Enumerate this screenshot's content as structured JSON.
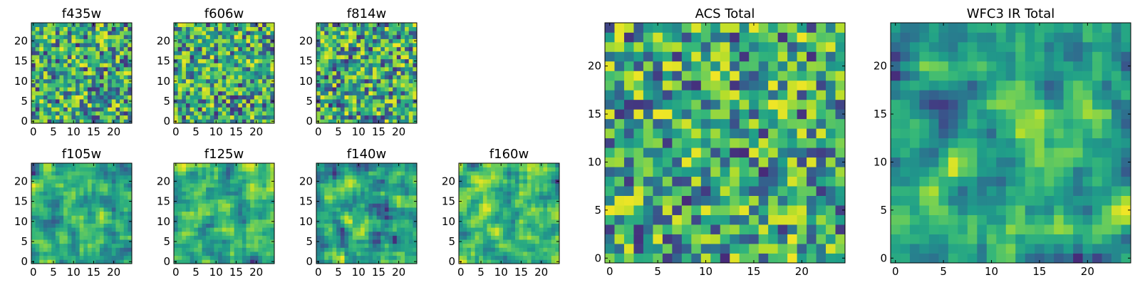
{
  "chart_data": [
    {
      "type": "heatmap",
      "title": "f435w",
      "grid_size": 25,
      "colormap": "viridis",
      "x_ticks": [
        0,
        5,
        10,
        15,
        20
      ],
      "y_ticks": [
        0,
        5,
        10,
        15,
        20
      ],
      "xlim": [
        0,
        24
      ],
      "ylim": [
        0,
        24
      ]
    },
    {
      "type": "heatmap",
      "title": "f606w",
      "grid_size": 25,
      "colormap": "viridis",
      "x_ticks": [
        0,
        5,
        10,
        15,
        20
      ],
      "y_ticks": [
        0,
        5,
        10,
        15,
        20
      ],
      "xlim": [
        0,
        24
      ],
      "ylim": [
        0,
        24
      ]
    },
    {
      "type": "heatmap",
      "title": "f814w",
      "grid_size": 25,
      "colormap": "viridis",
      "x_ticks": [
        0,
        5,
        10,
        15,
        20
      ],
      "y_ticks": [
        0,
        5,
        10,
        15,
        20
      ],
      "xlim": [
        0,
        24
      ],
      "ylim": [
        0,
        24
      ]
    },
    {
      "type": "heatmap",
      "title": "f105w",
      "grid_size": 25,
      "colormap": "viridis",
      "x_ticks": [
        0,
        5,
        10,
        15,
        20
      ],
      "y_ticks": [
        0,
        5,
        10,
        15,
        20
      ],
      "xlim": [
        0,
        24
      ],
      "ylim": [
        0,
        24
      ]
    },
    {
      "type": "heatmap",
      "title": "f125w",
      "grid_size": 25,
      "colormap": "viridis",
      "x_ticks": [
        0,
        5,
        10,
        15,
        20
      ],
      "y_ticks": [
        0,
        5,
        10,
        15,
        20
      ],
      "xlim": [
        0,
        24
      ],
      "ylim": [
        0,
        24
      ]
    },
    {
      "type": "heatmap",
      "title": "f140w",
      "grid_size": 25,
      "colormap": "viridis",
      "x_ticks": [
        0,
        5,
        10,
        15,
        20
      ],
      "y_ticks": [
        0,
        5,
        10,
        15,
        20
      ],
      "xlim": [
        0,
        24
      ],
      "ylim": [
        0,
        24
      ]
    },
    {
      "type": "heatmap",
      "title": "f160w",
      "grid_size": 25,
      "colormap": "viridis",
      "x_ticks": [
        0,
        5,
        10,
        15,
        20
      ],
      "y_ticks": [
        0,
        5,
        10,
        15,
        20
      ],
      "xlim": [
        0,
        24
      ],
      "ylim": [
        0,
        24
      ]
    },
    {
      "type": "heatmap",
      "title": "ACS Total",
      "grid_size": 25,
      "colormap": "viridis",
      "x_ticks": [
        0,
        5,
        10,
        15,
        20
      ],
      "y_ticks": [
        0,
        5,
        10,
        15,
        20
      ],
      "xlim": [
        0,
        24
      ],
      "ylim": [
        0,
        24
      ]
    },
    {
      "type": "heatmap",
      "title": "WFC3 IR Total",
      "grid_size": 25,
      "colormap": "viridis",
      "x_ticks": [
        0,
        5,
        10,
        15,
        20
      ],
      "y_ticks": [
        0,
        5,
        10,
        15,
        20
      ],
      "xlim": [
        0,
        24
      ],
      "ylim": [
        0,
        24
      ]
    }
  ]
}
